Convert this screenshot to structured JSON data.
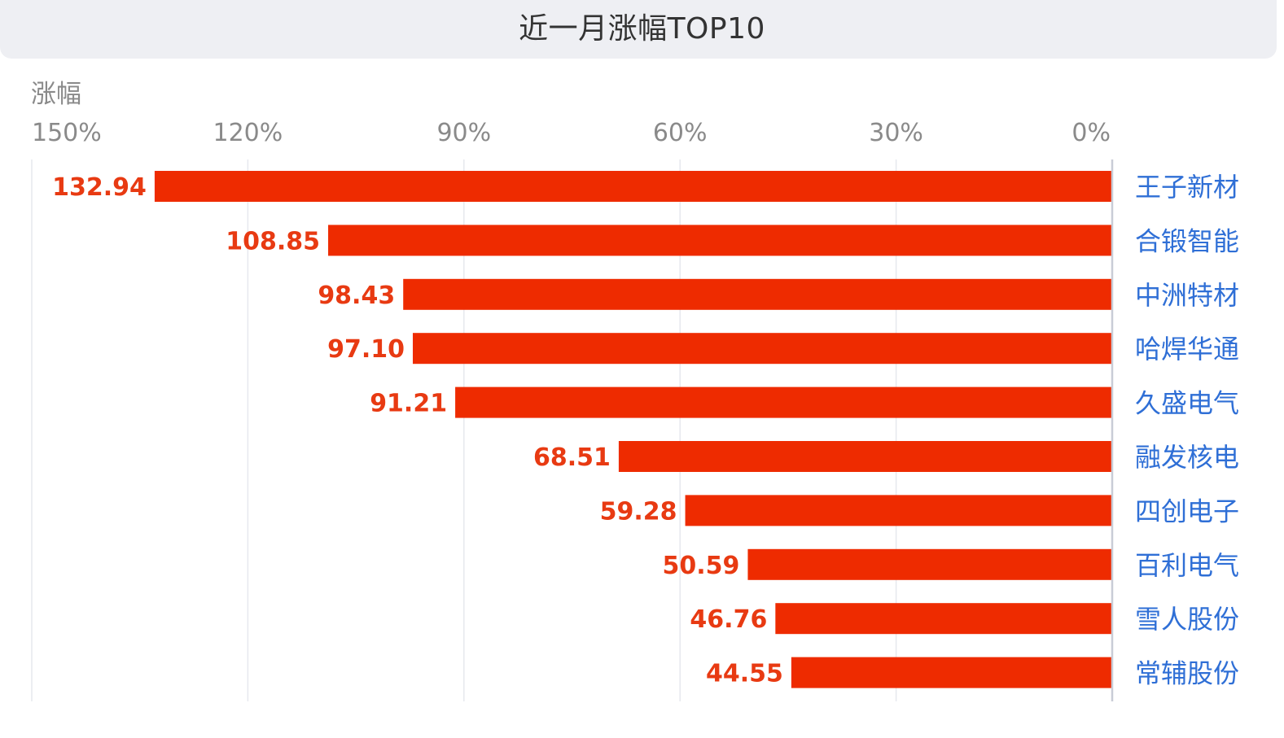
{
  "header": {
    "title": "近一月涨幅TOP10"
  },
  "chart_data": {
    "type": "bar",
    "orientation": "horizontal",
    "x_axis_direction": "reversed",
    "title": "近一月涨幅TOP10",
    "ylabel": "涨幅",
    "xlim": [
      0,
      150
    ],
    "ticks": [
      150,
      120,
      90,
      60,
      30,
      0
    ],
    "tick_labels": [
      "150%",
      "120%",
      "90%",
      "60%",
      "30%",
      "0%"
    ],
    "grid": true,
    "categories": [
      "王子新材",
      "合锻智能",
      "中洲特材",
      "哈焊华通",
      "久盛电气",
      "融发核电",
      "四创电子",
      "百利电气",
      "雪人股份",
      "常辅股份"
    ],
    "values": [
      132.94,
      108.85,
      98.43,
      97.1,
      91.21,
      68.51,
      59.28,
      50.59,
      46.76,
      44.55
    ],
    "value_labels": [
      "132.94",
      "108.85",
      "98.43",
      "97.10",
      "91.21",
      "68.51",
      "59.28",
      "50.59",
      "46.76",
      "44.55"
    ],
    "colors": {
      "bar": "#ee2b00",
      "value_label": "#e83a12",
      "category_label": "#2f6fd6",
      "grid": "#e6e8ee",
      "axis_line": "#c9ccd6"
    }
  }
}
